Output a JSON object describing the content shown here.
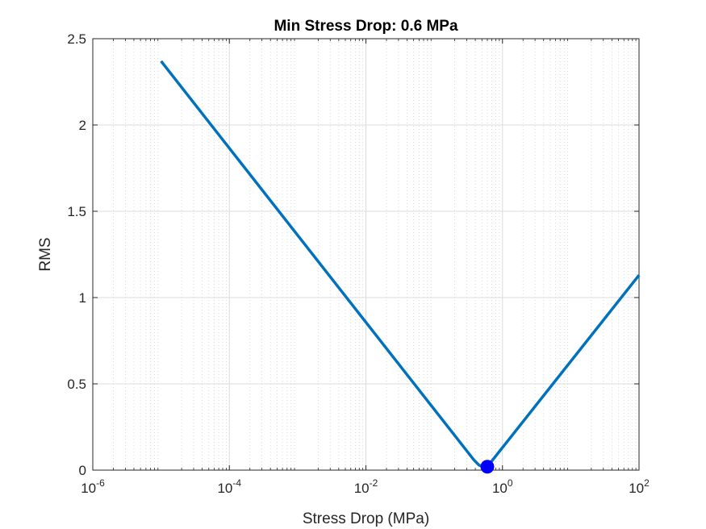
{
  "chart_data": {
    "type": "line",
    "title": "Min Stress Drop: 0.6 MPa",
    "xlabel": "Stress Drop (MPa)",
    "ylabel": "RMS",
    "xscale": "log",
    "xlim": [
      1e-06,
      100
    ],
    "ylim": [
      0,
      2.5
    ],
    "xticks": [
      {
        "base": "10",
        "exp": "-6",
        "value": 1e-06
      },
      {
        "base": "10",
        "exp": "-4",
        "value": 0.0001
      },
      {
        "base": "10",
        "exp": "-2",
        "value": 0.01
      },
      {
        "base": "10",
        "exp": "0",
        "value": 1
      },
      {
        "base": "10",
        "exp": "2",
        "value": 100
      }
    ],
    "yticks": [
      "0",
      "0.5",
      "1",
      "1.5",
      "2",
      "2.5"
    ],
    "grid": true,
    "series": [
      {
        "color": "#0072BD",
        "x": [
          1e-05,
          0.38,
          0.45,
          0.52,
          0.6,
          100
        ],
        "y": [
          2.37,
          0.06,
          0.03,
          0.02,
          0.02,
          1.13
        ]
      }
    ],
    "marker": {
      "x": 0.6,
      "y": 0.02,
      "color": "#0000FF"
    }
  }
}
